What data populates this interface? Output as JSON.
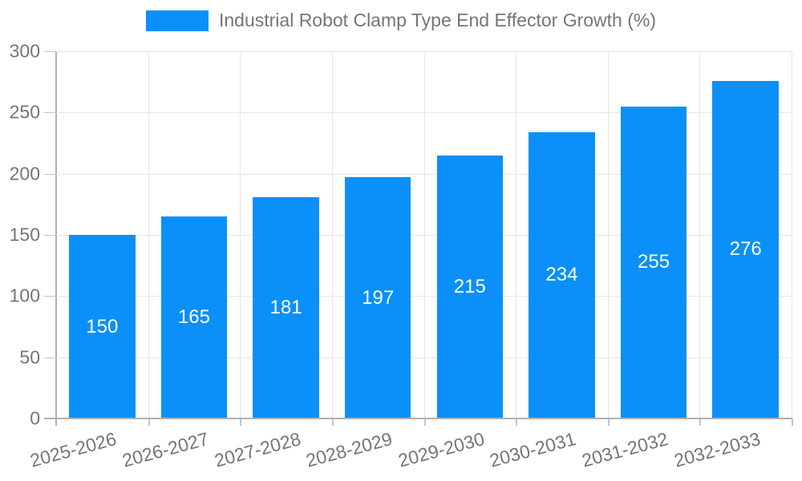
{
  "chart_data": {
    "type": "bar",
    "title": "Industrial Robot Clamp Type End Effector Growth (%)",
    "categories": [
      "2025-2026",
      "2026-2027",
      "2027-2028",
      "2028-2029",
      "2029-2030",
      "2030-2031",
      "2031-2032",
      "2032-2033"
    ],
    "values": [
      150,
      165,
      181,
      197,
      215,
      234,
      255,
      276
    ],
    "xlabel": "",
    "ylabel": "",
    "ylim": [
      0,
      300
    ],
    "yticks": [
      0,
      50,
      100,
      150,
      200,
      250,
      300
    ],
    "grid": true,
    "legend_position": "top",
    "bar_label_position": "inside-center",
    "x_label_rotation_deg": -15
  },
  "colors": {
    "bar": "#0a90f8",
    "title_text": "#757575",
    "axis_text": "#757575",
    "grid_line": "#e6e6e6",
    "axis_line": "#b0b0b0",
    "tick_line": "#c4c4c4",
    "bar_label": "#ffffff",
    "background": "#ffffff"
  }
}
